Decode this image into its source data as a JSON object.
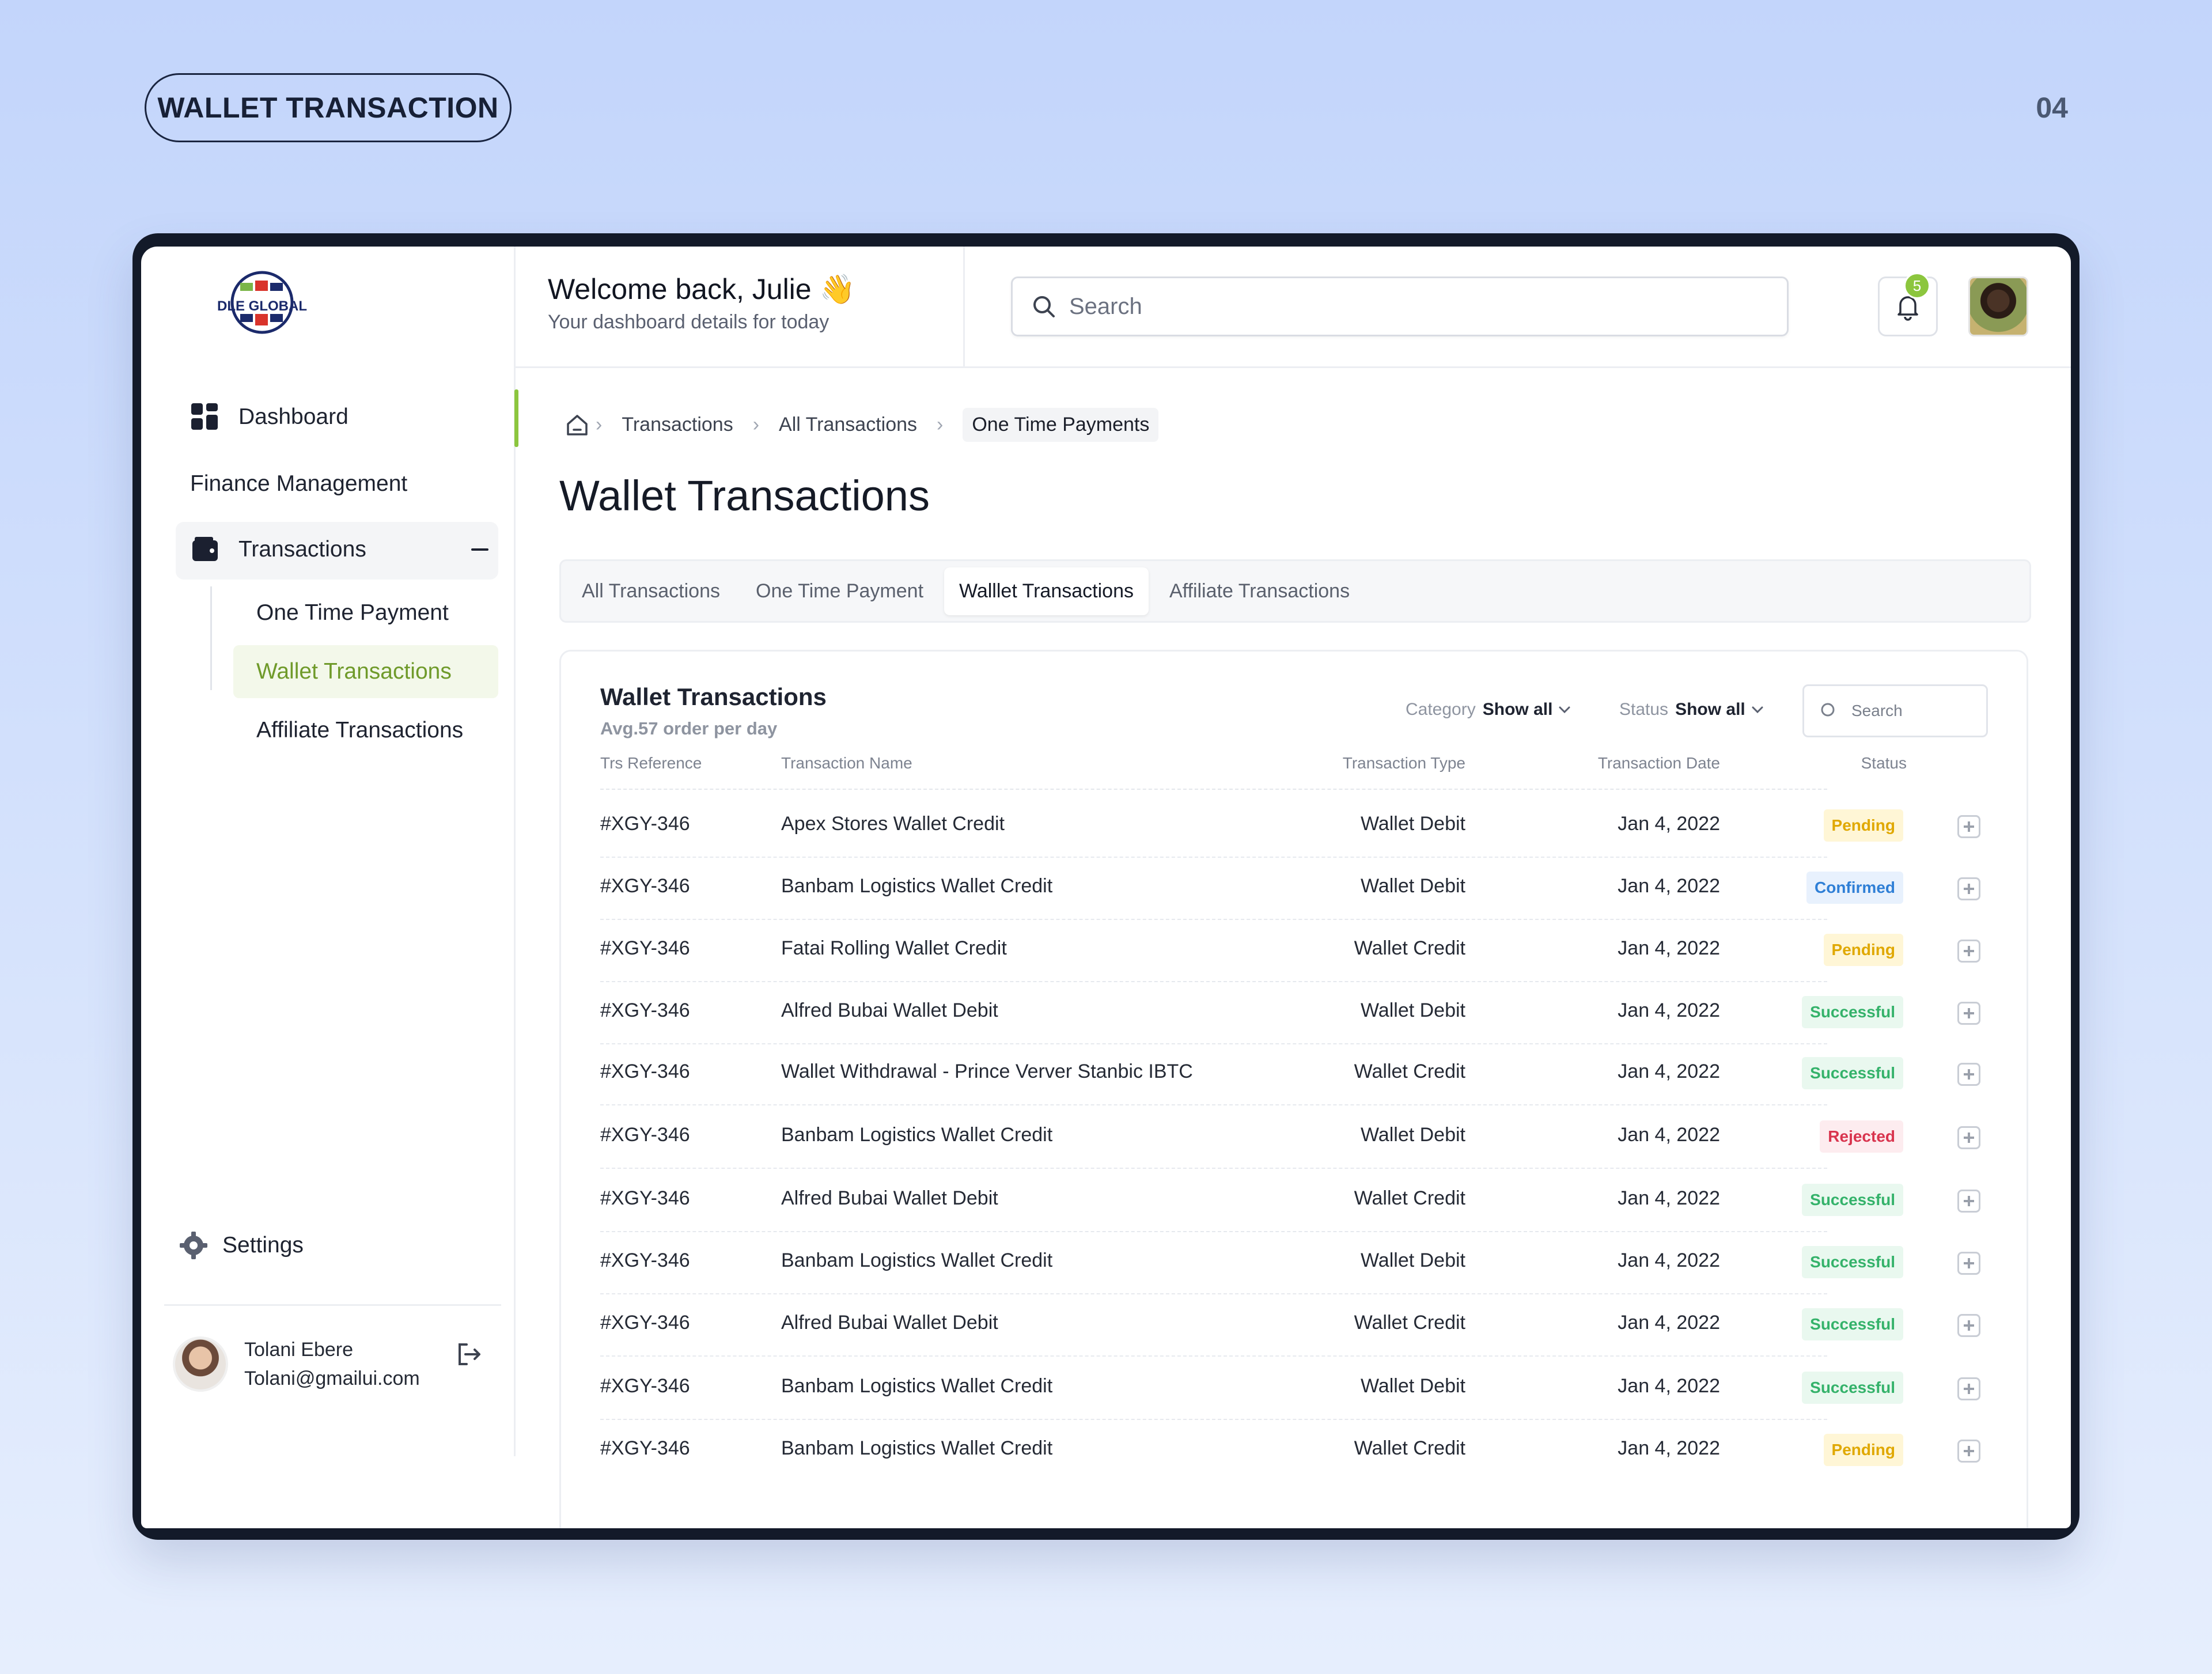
{
  "page": {
    "label": "WALLET TRANSACTION",
    "number": "04"
  },
  "brand": {
    "name": "DLE GLOBAL"
  },
  "sidebar": {
    "items": [
      {
        "label": "Dashboard"
      },
      {
        "label": "Finance Management"
      },
      {
        "label": "Transactions"
      }
    ],
    "sub_items": [
      {
        "label": "One Time Payment"
      },
      {
        "label": "Wallet Transactions"
      },
      {
        "label": "Affiliate Transactions"
      }
    ],
    "settings_label": "Settings",
    "user": {
      "name": "Tolani Ebere",
      "email": "Tolani@gmailui.com"
    }
  },
  "header": {
    "welcome": "Welcome back, Julie 👋",
    "subtitle": "Your dashboard details for today",
    "search_placeholder": "Search",
    "notification_count": "5"
  },
  "breadcrumb": [
    "Transactions",
    "All Transactions",
    "One Time Payments"
  ],
  "title": "Wallet Transactions",
  "tabs": [
    "All Transactions",
    "One Time Payment",
    "Walllet Transactions",
    "Affiliate Transactions"
  ],
  "card": {
    "title": "Wallet Transactions",
    "subtitle": "Avg.57 order per day",
    "category_label": "Category",
    "category_value": "Show all",
    "status_label": "Status",
    "status_value": "Show all",
    "search_placeholder": "Search",
    "columns": [
      "Trs Reference",
      "Transaction Name",
      "Transaction Type",
      "Transaction Date",
      "Status"
    ],
    "rows": [
      {
        "ref": "#XGY-346",
        "name": "Apex Stores Wallet Credit",
        "type": "Wallet Debit",
        "date": "Jan 4, 2022",
        "status": "Pending"
      },
      {
        "ref": "#XGY-346",
        "name": "Banbam Logistics Wallet Credit",
        "type": "Wallet Debit",
        "date": "Jan 4, 2022",
        "status": "Confirmed"
      },
      {
        "ref": "#XGY-346",
        "name": "Fatai Rolling Wallet Credit",
        "type": "Wallet Credit",
        "date": "Jan 4, 2022",
        "status": "Pending"
      },
      {
        "ref": "#XGY-346",
        "name": "Alfred Bubai Wallet Debit",
        "type": "Wallet Debit",
        "date": "Jan 4, 2022",
        "status": "Successful"
      },
      {
        "ref": "#XGY-346",
        "name": "Wallet Withdrawal - Prince Verver Stanbic IBTC",
        "type": "Wallet Credit",
        "date": "Jan 4, 2022",
        "status": "Successful"
      },
      {
        "ref": "#XGY-346",
        "name": "Banbam Logistics Wallet Credit",
        "type": "Wallet Debit",
        "date": "Jan 4, 2022",
        "status": "Rejected"
      },
      {
        "ref": "#XGY-346",
        "name": "Alfred Bubai Wallet Debit",
        "type": "Wallet Credit",
        "date": "Jan 4, 2022",
        "status": "Successful"
      },
      {
        "ref": "#XGY-346",
        "name": "Banbam Logistics Wallet Credit",
        "type": "Wallet Debit",
        "date": "Jan 4, 2022",
        "status": "Successful"
      },
      {
        "ref": "#XGY-346",
        "name": "Alfred Bubai Wallet Debit",
        "type": "Wallet Credit",
        "date": "Jan 4, 2022",
        "status": "Successful"
      },
      {
        "ref": "#XGY-346",
        "name": "Banbam Logistics Wallet Credit",
        "type": "Wallet Debit",
        "date": "Jan 4, 2022",
        "status": "Successful"
      },
      {
        "ref": "#XGY-346",
        "name": "Banbam Logistics Wallet Credit",
        "type": "Wallet Credit",
        "date": "Jan 4, 2022",
        "status": "Pending"
      }
    ]
  },
  "status_colors": {
    "Pending": {
      "bg": "#fff6d6",
      "fg": "#e0a800"
    },
    "Confirmed": {
      "bg": "#e8f1fd",
      "fg": "#2f7fd6"
    },
    "Successful": {
      "bg": "#e9f8ef",
      "fg": "#34b26a"
    },
    "Rejected": {
      "bg": "#fdecef",
      "fg": "#d9344e"
    }
  },
  "accent_color": "#8cc63e"
}
